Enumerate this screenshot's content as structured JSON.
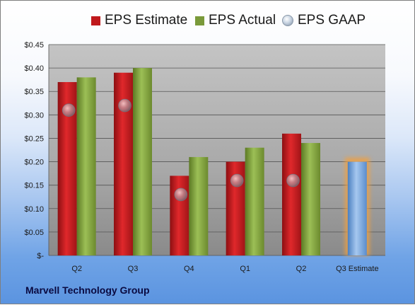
{
  "legend": {
    "estimate": "EPS Estimate",
    "actual": "EPS Actual",
    "gaap": "EPS GAAP"
  },
  "footer": "Marvell Technology Group",
  "colors": {
    "estimate": "#c0191c",
    "actual": "#7a9a3a",
    "forecast": "#6ea0d8",
    "forecast_glow": "#f0a040",
    "gaap": "#9aa7b6"
  },
  "chart_data": {
    "type": "bar",
    "categories": [
      "Q2",
      "Q3",
      "Q4",
      "Q1",
      "Q2",
      "Q3 Estimate"
    ],
    "series": [
      {
        "name": "EPS Estimate",
        "values": [
          0.37,
          0.39,
          0.17,
          0.2,
          0.26,
          0.2
        ]
      },
      {
        "name": "EPS Actual",
        "values": [
          0.38,
          0.4,
          0.21,
          0.23,
          0.24,
          null
        ]
      },
      {
        "name": "EPS GAAP",
        "values": [
          0.31,
          0.32,
          0.13,
          0.16,
          0.16,
          null
        ]
      }
    ],
    "y_ticks": [
      "$-",
      "$0.05",
      "$0.10",
      "$0.15",
      "$0.20",
      "$0.25",
      "$0.30",
      "$0.35",
      "$0.40",
      "$0.45"
    ],
    "ylim": [
      0,
      0.45
    ],
    "grid": true,
    "legend_position": "top"
  }
}
